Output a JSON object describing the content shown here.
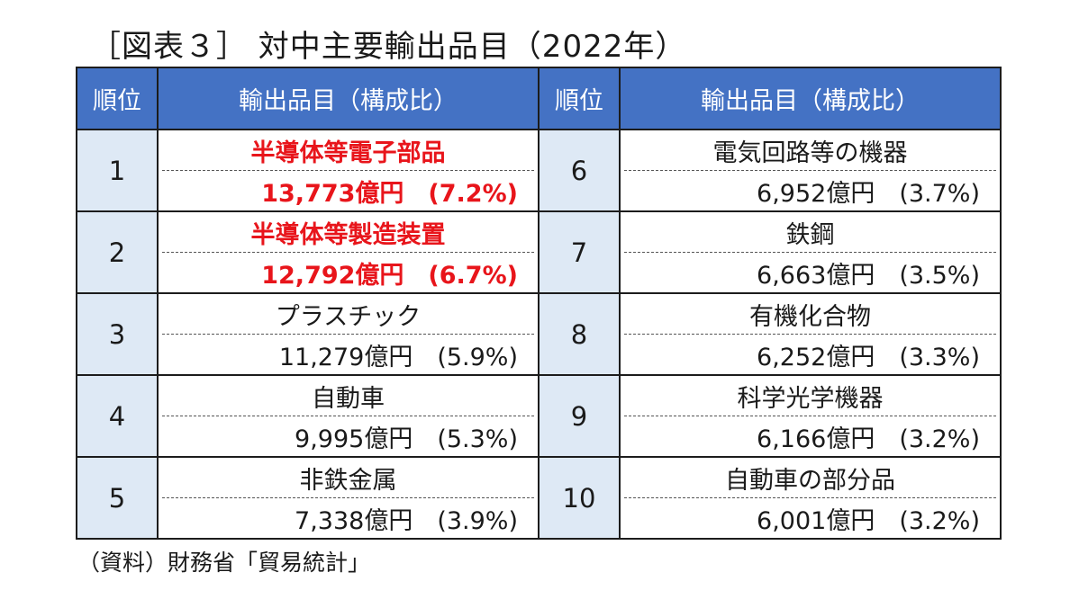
{
  "title": "［図表３］ 対中主要輸出品目（2022年）",
  "headers": {
    "rank": "順位",
    "item": "輸出品目（構成比）"
  },
  "left": [
    {
      "rank": "1",
      "name": "半導体等電子部品",
      "value": "13,773億円　(7.2%)",
      "highlight": true
    },
    {
      "rank": "2",
      "name": "半導体等製造装置",
      "value": "12,792億円　(6.7%)",
      "highlight": true
    },
    {
      "rank": "3",
      "name": "プラスチック",
      "value": "11,279億円　(5.9%)",
      "highlight": false
    },
    {
      "rank": "4",
      "name": "自動車",
      "value": "9,995億円　(5.3%)",
      "highlight": false
    },
    {
      "rank": "5",
      "name": "非鉄金属",
      "value": "7,338億円　(3.9%)",
      "highlight": false
    }
  ],
  "right": [
    {
      "rank": "6",
      "name": "電気回路等の機器",
      "value": "6,952億円　(3.7%)"
    },
    {
      "rank": "7",
      "name": "鉄鋼",
      "value": "6,663億円　(3.5%)"
    },
    {
      "rank": "8",
      "name": "有機化合物",
      "value": "6,252億円　(3.3%)"
    },
    {
      "rank": "9",
      "name": "科学光学機器",
      "value": "6,166億円　(3.2%)"
    },
    {
      "rank": "10",
      "name": "自動車の部分品",
      "value": "6,001億円　(3.2%)"
    }
  ],
  "source": "（資料）財務省「貿易統計」",
  "colors": {
    "header_bg": "#4472c4",
    "rank_bg": "#dee9f5",
    "highlight_text": "#e8151b"
  }
}
